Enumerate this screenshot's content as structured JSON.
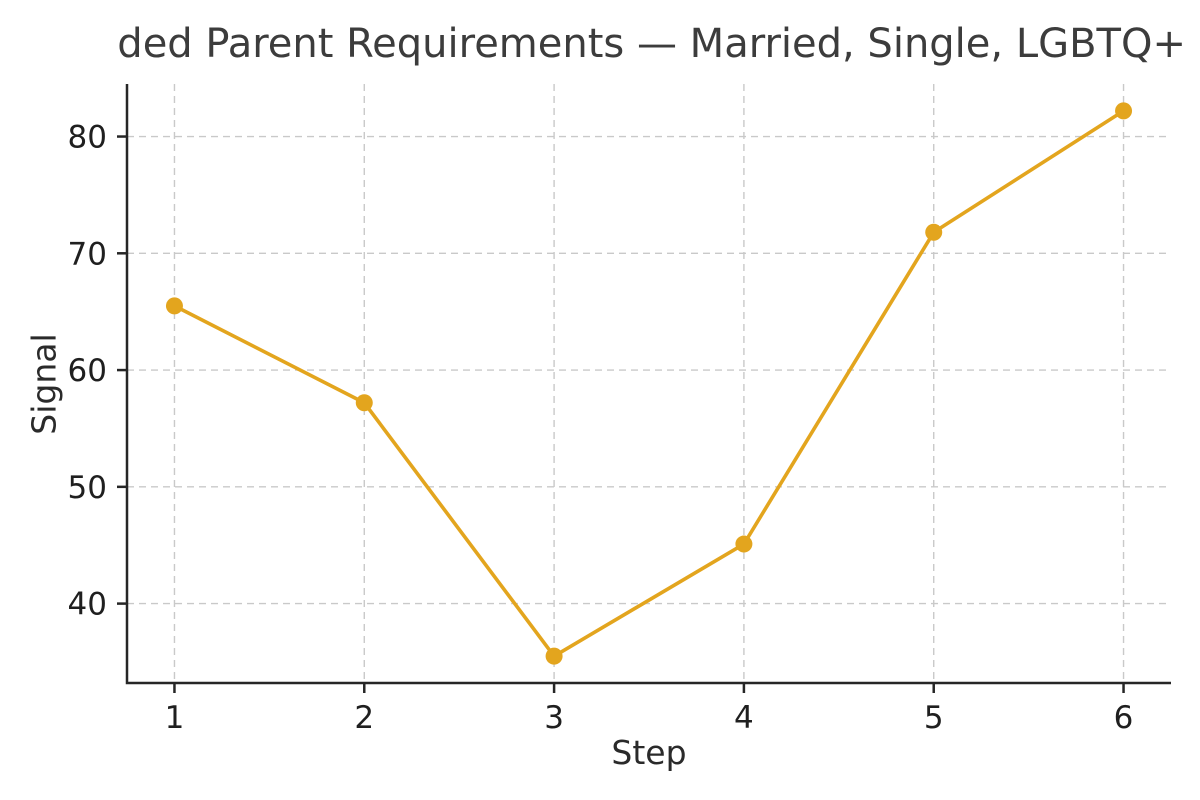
{
  "figure": {
    "title_visible_text": "ded Parent Requirements — Married, Single, LGBTQ+"
  },
  "chart_data": {
    "type": "line",
    "title": "ded Parent Requirements — Married, Single, LGBTQ+",
    "xlabel": "Step",
    "ylabel": "Signal",
    "x": [
      1,
      2,
      3,
      4,
      5,
      6
    ],
    "series": [
      {
        "name": "Signal",
        "values": [
          65.5,
          57.2,
          35.5,
          45.1,
          71.8,
          82.2
        ]
      }
    ],
    "xticks": [
      1,
      2,
      3,
      4,
      5,
      6
    ],
    "yticks": [
      40,
      50,
      60,
      70,
      80
    ],
    "xlim": [
      0.75,
      6.25
    ],
    "ylim": [
      33.2,
      84.5
    ],
    "grid": true,
    "grid_style": "dashed",
    "legend": "none",
    "colors": {
      "line": "#E3A51E",
      "marker": "#E3A51E",
      "grid": "#c9c9c9",
      "spine": "#262626",
      "tick_text": "#1f1f1f",
      "title_text": "#3c3c3c",
      "background": "#ffffff"
    },
    "marker": "circle",
    "marker_radius": 8.5,
    "line_width": 3.6
  }
}
